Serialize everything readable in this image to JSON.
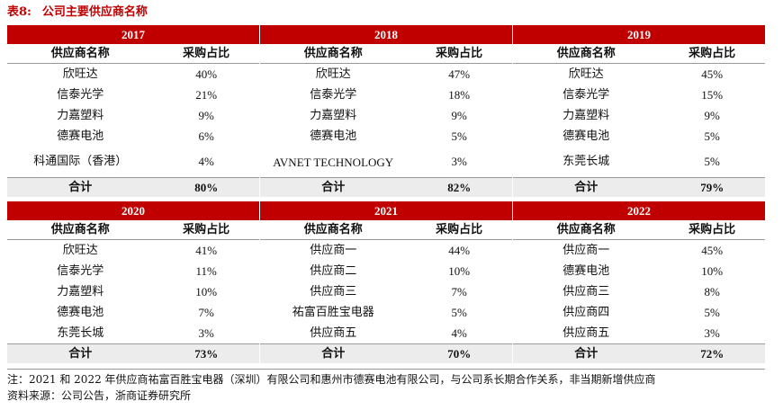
{
  "title": {
    "label": "表8:",
    "text": "公司主要供应商名称"
  },
  "headers": {
    "name": "供应商名称",
    "share": "采购占比"
  },
  "total_label": "合计",
  "top": [
    {
      "year": "2017",
      "rows": [
        [
          "欣旺达",
          "40%"
        ],
        [
          "信泰光学",
          "21%"
        ],
        [
          "力嘉塑料",
          "9%"
        ],
        [
          "德赛电池",
          "6%"
        ],
        [
          "科通国际（香港）",
          "4%"
        ]
      ],
      "total": "80%"
    },
    {
      "year": "2018",
      "rows": [
        [
          "欣旺达",
          "47%"
        ],
        [
          "信泰光学",
          "18%"
        ],
        [
          "力嘉塑料",
          "9%"
        ],
        [
          "德赛电池",
          "5%"
        ],
        [
          "AVNET TECHNOLOGY",
          "3%"
        ]
      ],
      "total": "82%"
    },
    {
      "year": "2019",
      "rows": [
        [
          "欣旺达",
          "45%"
        ],
        [
          "信泰光学",
          "15%"
        ],
        [
          "力嘉塑料",
          "9%"
        ],
        [
          "德赛电池",
          "5%"
        ],
        [
          "东莞长城",
          "5%"
        ]
      ],
      "total": "79%"
    }
  ],
  "bottom": [
    {
      "year": "2020",
      "rows": [
        [
          "欣旺达",
          "41%"
        ],
        [
          "信泰光学",
          "11%"
        ],
        [
          "力嘉塑料",
          "10%"
        ],
        [
          "德赛电池",
          "7%"
        ],
        [
          "东莞长城",
          "3%"
        ]
      ],
      "total": "73%"
    },
    {
      "year": "2021",
      "rows": [
        [
          "供应商一",
          "44%"
        ],
        [
          "供应商二",
          "10%"
        ],
        [
          "供应商三",
          "7%"
        ],
        [
          "祐富百胜宝电器",
          "5%"
        ],
        [
          "供应商五",
          "4%"
        ]
      ],
      "total": "70%"
    },
    {
      "year": "2022",
      "rows": [
        [
          "供应商一",
          "45%"
        ],
        [
          "德赛电池",
          "10%"
        ],
        [
          "供应商三",
          "8%"
        ],
        [
          "供应商四",
          "5%"
        ],
        [
          "供应商五",
          "3%"
        ]
      ],
      "total": "72%"
    }
  ],
  "note": "注：2021 和 2022 年供应商祐富百胜宝电器（深圳）有限公司和惠州市德赛电池有限公司，与公司系长期合作关系，非当期新增供应商",
  "source": "资料来源：公司公告，浙商证券研究所"
}
